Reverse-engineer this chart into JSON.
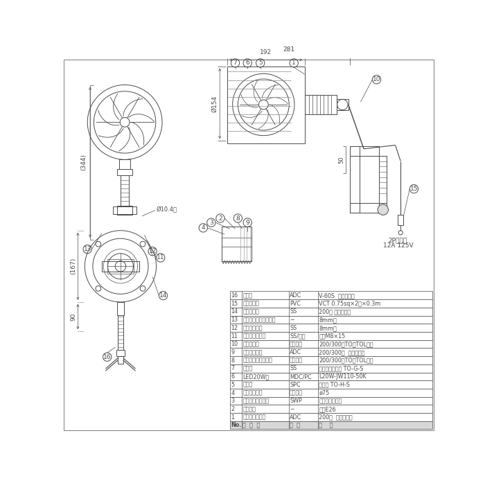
{
  "bg_color": "#ffffff",
  "line_color": "#4a4a4a",
  "table_data": [
    [
      "16",
      "バイス",
      "ADC",
      "V-60S  グレー尻装"
    ],
    [
      "15",
      "電源コード",
      "PVC",
      "VCT 0.75sq×2芯×0.3m"
    ],
    [
      "14",
      "本体取付枠",
      "SS",
      "200型 グレー尻装"
    ],
    [
      "13",
      "スプリングワッシャー",
      "−",
      "8mm用"
    ],
    [
      "12",
      "平ワッシャー",
      "SS",
      "8mm用"
    ],
    [
      "11",
      "角度調節ツマミ",
      "SS/樹脂",
      "ノブM8×15"
    ],
    [
      "10",
      "ブッシング",
      "シリコン",
      "200/300型TO、TOL共通"
    ],
    [
      "9",
      "線止めナット",
      "ADC",
      "200/300型  グレー尻装"
    ],
    [
      "8",
      "線止めゴムパッキン",
      "合成ゴム",
      "200/300型TO、TOL共通"
    ],
    [
      "7",
      "ガード",
      "SS",
      "三価クロメート TO-G-S"
    ],
    [
      "6",
      "LED20W球",
      "MDC/PC",
      "L20W-JW110-50K"
    ],
    [
      "5",
      "フード",
      "SPC",
      "白尻装 TO-H-S"
    ],
    [
      "4",
      "防水パッキン",
      "シリコン",
      "ø75"
    ],
    [
      "3",
      "ソケット押えバネ",
      "SWP",
      "三価クロメート"
    ],
    [
      "2",
      "ソケット",
      "−",
      "口金E26"
    ],
    [
      "1",
      "ランプホルダー",
      "ADC",
      "200型  グレー尻装"
    ],
    [
      "No.",
      "部  品  名",
      "材  質",
      "備    考"
    ]
  ],
  "dim_281": "281",
  "dim_192": "192",
  "dim_154": "Ø154",
  "dim_344": "(344)",
  "dim_167": "(167)",
  "dim_90": "90",
  "dim_hole": "Ø10.4穴",
  "dim_cord": "50",
  "plug_label1": "2Pプラグ",
  "plug_label2": "12A 125V"
}
